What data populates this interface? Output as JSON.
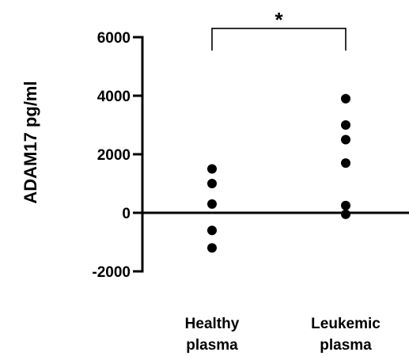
{
  "chart_data": {
    "type": "scatter",
    "ylabel": "ADAM17 pg/ml",
    "xlabel": "",
    "ylim": [
      -2000,
      6000
    ],
    "yticks": [
      -2000,
      0,
      2000,
      4000,
      6000
    ],
    "categories": [
      {
        "name": "healthy",
        "lines": [
          "Healthy",
          "plasma"
        ]
      },
      {
        "name": "leukemic",
        "lines": [
          "Leukemic",
          "plasma"
        ]
      }
    ],
    "series": [
      {
        "category": "Healthy plasma",
        "values": [
          1500,
          1000,
          300,
          -600,
          -1200
        ]
      },
      {
        "category": "Leukemic plasma",
        "values": [
          3900,
          3000,
          2500,
          1700,
          250,
          -50
        ]
      }
    ],
    "annotation": {
      "label": "*",
      "from": 0,
      "to": 1,
      "y": 6300
    },
    "grid": false,
    "colors": {
      "points": "#000000",
      "axes": "#000000"
    }
  }
}
